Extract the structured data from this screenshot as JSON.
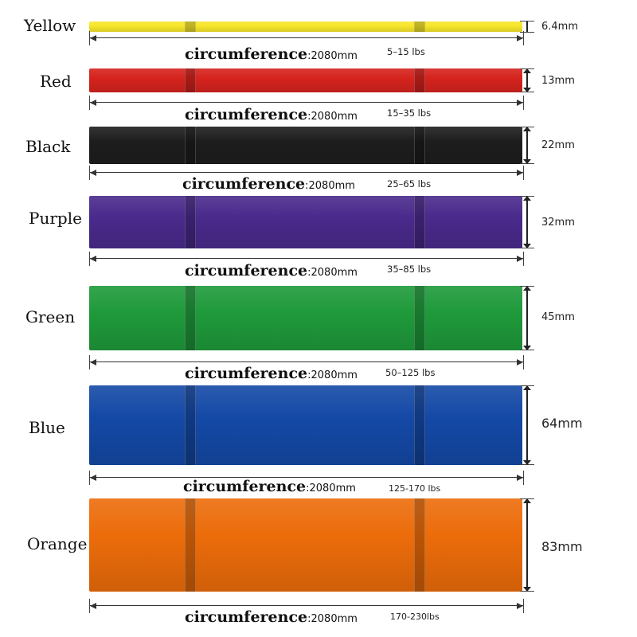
{
  "circumference_word": "circumference",
  "circumference_value": ":2080mm",
  "bands": [
    {
      "name": "Yellow",
      "color": "#f7e62c",
      "thickness": "6.4mm",
      "resistance": "5–15 lbs"
    },
    {
      "name": "Red",
      "color": "#d6231e",
      "thickness": "13mm",
      "resistance": "15–35 lbs"
    },
    {
      "name": "Black",
      "color": "#1d1d1d",
      "thickness": "22mm",
      "resistance": "25–65 lbs"
    },
    {
      "name": "Purple",
      "color": "#4a2a8c",
      "thickness": "32mm",
      "resistance": "35–85 lbs"
    },
    {
      "name": "Green",
      "color": "#1f9a3b",
      "thickness": "45mm",
      "resistance": "50–125 lbs"
    },
    {
      "name": "Blue",
      "color": "#1449a6",
      "thickness": "64mm",
      "resistance": "125-170 lbs"
    },
    {
      "name": "Orange",
      "color": "#ec6c0a",
      "thickness": "83mm",
      "resistance": "170-230lbs"
    }
  ]
}
